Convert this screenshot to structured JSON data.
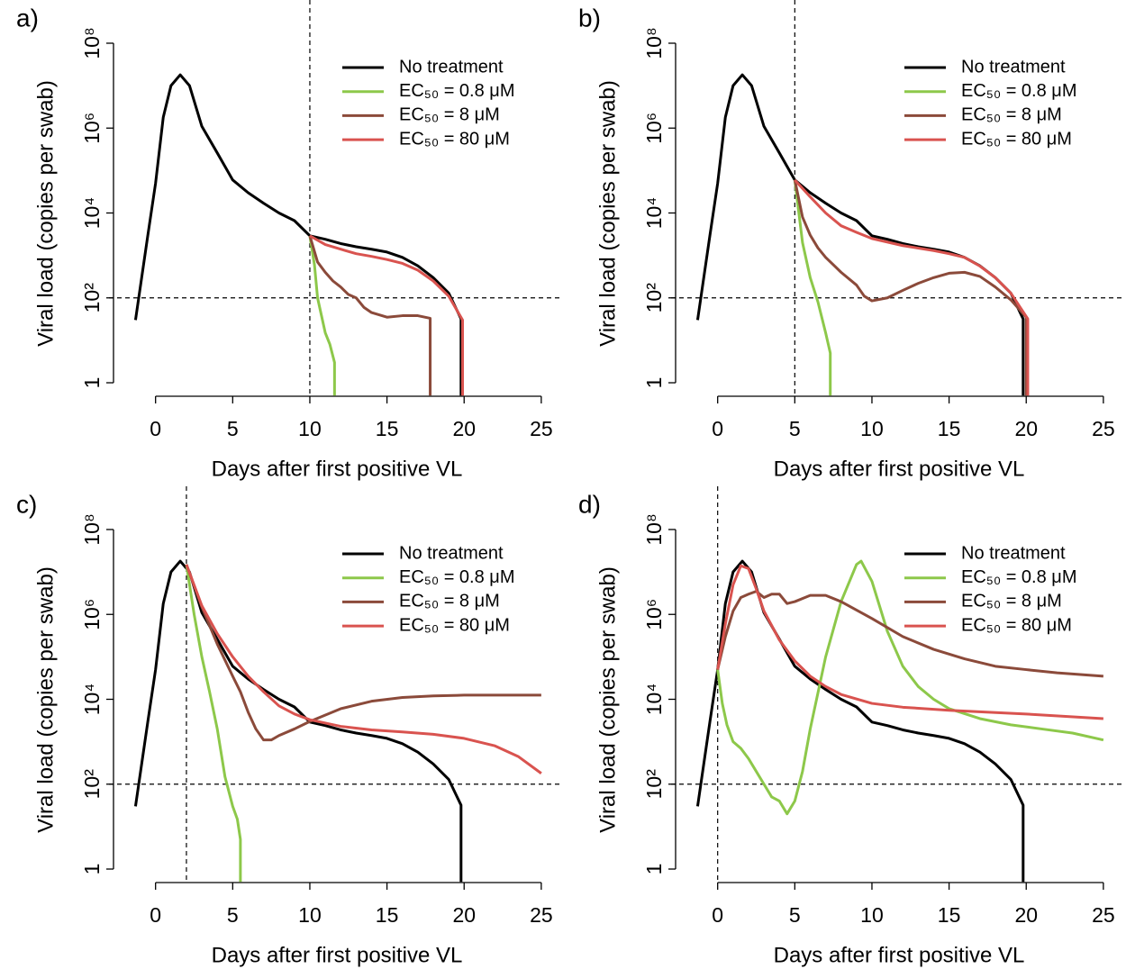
{
  "chart_data": [
    {
      "type": "line",
      "panel_label": "a)",
      "x_label": "Days after first positive VL",
      "y_label": "Viral load (copies per swab)",
      "ylog": true,
      "xlim": [
        -1.5,
        26
      ],
      "ylim": [
        0.5,
        200000000
      ],
      "xticks": [
        0,
        5,
        10,
        15,
        20,
        25
      ],
      "yticks": [
        1,
        {
          "value": 100,
          "label": "10²"
        },
        {
          "value": 10000,
          "label": "10⁴"
        },
        {
          "value": 1000000,
          "label": "10⁶"
        },
        {
          "value": 100000000,
          "label": "10⁸"
        }
      ],
      "reference_lines": {
        "x": 10,
        "y": 100
      },
      "legend": "top right",
      "series": [
        {
          "name": "No treatment",
          "color": "#000000",
          "x": [
            -1.3,
            -0.5,
            0,
            0.5,
            1,
            1.6,
            2.2,
            3,
            4,
            5,
            6,
            7,
            8,
            9,
            10,
            11,
            12,
            13,
            14,
            15,
            16,
            17,
            18,
            19,
            19.8,
            19.8
          ],
          "values": [
            30,
            3000,
            50000,
            1800000,
            10000000,
            18000000,
            10000000,
            1100000,
            260000,
            60000,
            30000,
            17000,
            10000,
            6600,
            2900,
            2400,
            1900,
            1600,
            1400,
            1200,
            900,
            570,
            300,
            130,
            32,
            0.5
          ]
        },
        {
          "name": "EC₅₀ = 0.8 μM",
          "color": "#8dc84a",
          "x": [
            10,
            10.3,
            10.5,
            11,
            11.3,
            11.6,
            11.6
          ],
          "values": [
            2900,
            600,
            100,
            15,
            8,
            3,
            0.5
          ]
        },
        {
          "name": "EC₅₀ = 8 μM",
          "color": "#8b4a3a",
          "x": [
            10,
            10.5,
            11,
            11.5,
            12,
            12.5,
            13,
            13.5,
            14,
            15,
            16,
            17,
            17.8,
            17.8
          ],
          "values": [
            2900,
            700,
            400,
            250,
            180,
            120,
            100,
            60,
            45,
            35,
            38,
            38,
            33,
            0.5
          ]
        },
        {
          "name": "EC₅₀ = 80 μM",
          "color": "#d9534f",
          "x": [
            10,
            11,
            12,
            13,
            14,
            15,
            16,
            17,
            18,
            19,
            19.9,
            19.9
          ],
          "values": [
            2900,
            1800,
            1400,
            1100,
            950,
            800,
            650,
            450,
            250,
            110,
            30,
            0.5
          ]
        }
      ]
    },
    {
      "type": "line",
      "panel_label": "b)",
      "x_label": "Days after first positive VL",
      "y_label": "Viral load (copies per swab)",
      "ylog": true,
      "xlim": [
        -1.5,
        26
      ],
      "ylim": [
        0.5,
        200000000
      ],
      "xticks": [
        0,
        5,
        10,
        15,
        20,
        25
      ],
      "yticks": [
        1,
        {
          "value": 100,
          "label": "10²"
        },
        {
          "value": 10000,
          "label": "10⁴"
        },
        {
          "value": 1000000,
          "label": "10⁶"
        },
        {
          "value": 100000000,
          "label": "10⁸"
        }
      ],
      "reference_lines": {
        "x": 5,
        "y": 100
      },
      "legend": "top right",
      "series": [
        {
          "name": "No treatment",
          "color": "#000000",
          "x": [
            -1.3,
            -0.5,
            0,
            0.5,
            1,
            1.6,
            2.2,
            3,
            4,
            5,
            6,
            7,
            8,
            9,
            10,
            11,
            12,
            13,
            14,
            15,
            16,
            17,
            18,
            19,
            19.8,
            19.8
          ],
          "values": [
            30,
            3000,
            50000,
            1800000,
            10000000,
            18000000,
            10000000,
            1100000,
            260000,
            60000,
            30000,
            17000,
            10000,
            6600,
            2900,
            2400,
            1900,
            1600,
            1400,
            1200,
            900,
            570,
            300,
            130,
            32,
            0.5
          ]
        },
        {
          "name": "EC₅₀ = 0.8 μM",
          "color": "#8dc84a",
          "x": [
            5,
            5.5,
            6,
            6.5,
            7,
            7.3,
            7.3
          ],
          "values": [
            60000,
            2000,
            300,
            80,
            15,
            5,
            0.5
          ]
        },
        {
          "name": "EC₅₀ = 8 μM",
          "color": "#8b4a3a",
          "x": [
            5,
            5.5,
            6,
            6.5,
            7,
            7.5,
            8,
            9,
            9.5,
            10,
            11,
            12,
            13,
            14,
            15,
            16,
            17,
            18,
            19,
            20,
            20
          ],
          "values": [
            60000,
            8000,
            3000,
            1500,
            900,
            600,
            400,
            200,
            110,
            85,
            100,
            150,
            220,
            300,
            380,
            400,
            320,
            180,
            90,
            35,
            0.5
          ]
        },
        {
          "name": "EC₅₀ = 80 μM",
          "color": "#d9534f",
          "x": [
            5,
            6,
            7,
            8,
            9,
            10,
            12,
            14,
            15,
            16,
            17,
            18,
            19,
            20.1,
            20.1
          ],
          "values": [
            60000,
            24000,
            10000,
            5000,
            3500,
            2500,
            1700,
            1300,
            1100,
            900,
            560,
            300,
            130,
            32,
            0.5
          ]
        }
      ]
    },
    {
      "type": "line",
      "panel_label": "c)",
      "x_label": "Days after first positive VL",
      "y_label": "Viral load (copies per swab)",
      "ylog": true,
      "xlim": [
        -1.5,
        26
      ],
      "ylim": [
        0.5,
        200000000
      ],
      "xticks": [
        0,
        5,
        10,
        15,
        20,
        25
      ],
      "yticks": [
        1,
        {
          "value": 100,
          "label": "10²"
        },
        {
          "value": 10000,
          "label": "10⁴"
        },
        {
          "value": 1000000,
          "label": "10⁶"
        },
        {
          "value": 100000000,
          "label": "10⁸"
        }
      ],
      "reference_lines": {
        "x": 2,
        "y": 100
      },
      "legend": "top right",
      "series": [
        {
          "name": "No treatment",
          "color": "#000000",
          "x": [
            -1.3,
            -0.5,
            0,
            0.5,
            1,
            1.6,
            2.2,
            3,
            4,
            5,
            6,
            7,
            8,
            9,
            10,
            11,
            12,
            13,
            14,
            15,
            16,
            17,
            18,
            19,
            19.8,
            19.8
          ],
          "values": [
            30,
            3000,
            50000,
            1800000,
            10000000,
            18000000,
            10000000,
            1100000,
            260000,
            60000,
            30000,
            17000,
            10000,
            6600,
            2900,
            2400,
            1900,
            1600,
            1400,
            1200,
            900,
            570,
            300,
            130,
            32,
            0.5
          ]
        },
        {
          "name": "EC₅₀ = 0.8 μM",
          "color": "#8dc84a",
          "x": [
            2,
            2.5,
            3,
            3.5,
            4,
            4.5,
            5,
            5.3,
            5.5,
            5.5
          ],
          "values": [
            15000000,
            1000000,
            100000,
            15000,
            2000,
            150,
            30,
            15,
            5,
            0.5
          ]
        },
        {
          "name": "EC₅₀ = 8 μM",
          "color": "#8b4a3a",
          "x": [
            2,
            3,
            4,
            5,
            5.5,
            6,
            6.5,
            7,
            7.5,
            8,
            9,
            10,
            12,
            14,
            16,
            18,
            20,
            25
          ],
          "values": [
            15000000,
            1500000,
            200000,
            35000,
            15000,
            5000,
            2000,
            1100,
            1100,
            1400,
            2000,
            3000,
            6000,
            9000,
            11000,
            12000,
            12500,
            12500
          ]
        },
        {
          "name": "EC₅₀ = 80 μM",
          "color": "#d9534f",
          "x": [
            2,
            3,
            4,
            5,
            6,
            7,
            8,
            9,
            10,
            12,
            14,
            16,
            18,
            20,
            22,
            23.5,
            25
          ],
          "values": [
            15000000,
            1600000,
            350000,
            100000,
            35000,
            15000,
            7000,
            4500,
            3300,
            2300,
            1900,
            1700,
            1500,
            1200,
            800,
            450,
            180
          ]
        }
      ]
    },
    {
      "type": "line",
      "panel_label": "d)",
      "x_label": "Days after first positive VL",
      "y_label": "Viral load (copies per swab)",
      "ylog": true,
      "xlim": [
        -1.5,
        26
      ],
      "ylim": [
        0.5,
        200000000
      ],
      "xticks": [
        0,
        5,
        10,
        15,
        20,
        25
      ],
      "yticks": [
        1,
        {
          "value": 100,
          "label": "10²"
        },
        {
          "value": 10000,
          "label": "10⁴"
        },
        {
          "value": 1000000,
          "label": "10⁶"
        },
        {
          "value": 100000000,
          "label": "10⁸"
        }
      ],
      "reference_lines": {
        "x": 0,
        "y": 100
      },
      "legend": "top right",
      "series": [
        {
          "name": "No treatment",
          "color": "#000000",
          "x": [
            -1.3,
            -0.5,
            0,
            0.5,
            1,
            1.6,
            2.2,
            3,
            4,
            5,
            6,
            7,
            8,
            9,
            10,
            11,
            12,
            13,
            14,
            15,
            16,
            17,
            18,
            19,
            19.8,
            19.8
          ],
          "values": [
            30,
            3000,
            50000,
            1800000,
            10000000,
            18000000,
            10000000,
            1100000,
            260000,
            60000,
            30000,
            17000,
            10000,
            6600,
            2900,
            2400,
            1900,
            1600,
            1400,
            1200,
            900,
            570,
            300,
            130,
            32,
            0.5
          ]
        },
        {
          "name": "EC₅₀ = 0.8 μM",
          "color": "#8dc84a",
          "x": [
            0,
            0.3,
            0.6,
            1,
            1.5,
            2,
            2.5,
            3,
            3.5,
            4,
            4.5,
            5,
            5.5,
            6,
            7,
            8,
            9,
            9.3,
            10,
            11,
            12,
            13,
            14,
            15,
            17,
            19,
            21,
            23,
            25
          ],
          "values": [
            50000,
            8000,
            2500,
            1000,
            700,
            400,
            200,
            100,
            50,
            40,
            20,
            40,
            200,
            2000,
            100000,
            2000000,
            15000000,
            18000000,
            6000000,
            400000,
            60000,
            20000,
            10000,
            6000,
            3500,
            2500,
            2000,
            1600,
            1100
          ]
        },
        {
          "name": "EC₅₀ = 8 μM",
          "color": "#8b4a3a",
          "x": [
            0,
            0.5,
            1,
            1.5,
            2,
            2.5,
            3,
            3.5,
            4,
            4.5,
            5,
            6,
            7,
            8,
            10,
            12,
            14,
            16,
            18,
            20,
            22,
            25
          ],
          "values": [
            50000,
            300000,
            1200000,
            2500000,
            3000000,
            3500000,
            2500000,
            3000000,
            3000000,
            1800000,
            2000000,
            2800000,
            2800000,
            2000000,
            800000,
            300000,
            150000,
            90000,
            60000,
            50000,
            42000,
            35000
          ]
        },
        {
          "name": "EC₅₀ = 80 μM",
          "color": "#d9534f",
          "x": [
            0,
            0.5,
            1,
            1.5,
            2,
            2.5,
            3,
            4,
            5,
            6,
            7,
            8,
            10,
            12,
            15,
            20,
            25
          ],
          "values": [
            50000,
            600000,
            5000000,
            14000000,
            12000000,
            4000000,
            1200000,
            250000,
            80000,
            35000,
            20000,
            13000,
            8000,
            6500,
            5500,
            4500,
            3500
          ]
        }
      ]
    }
  ]
}
